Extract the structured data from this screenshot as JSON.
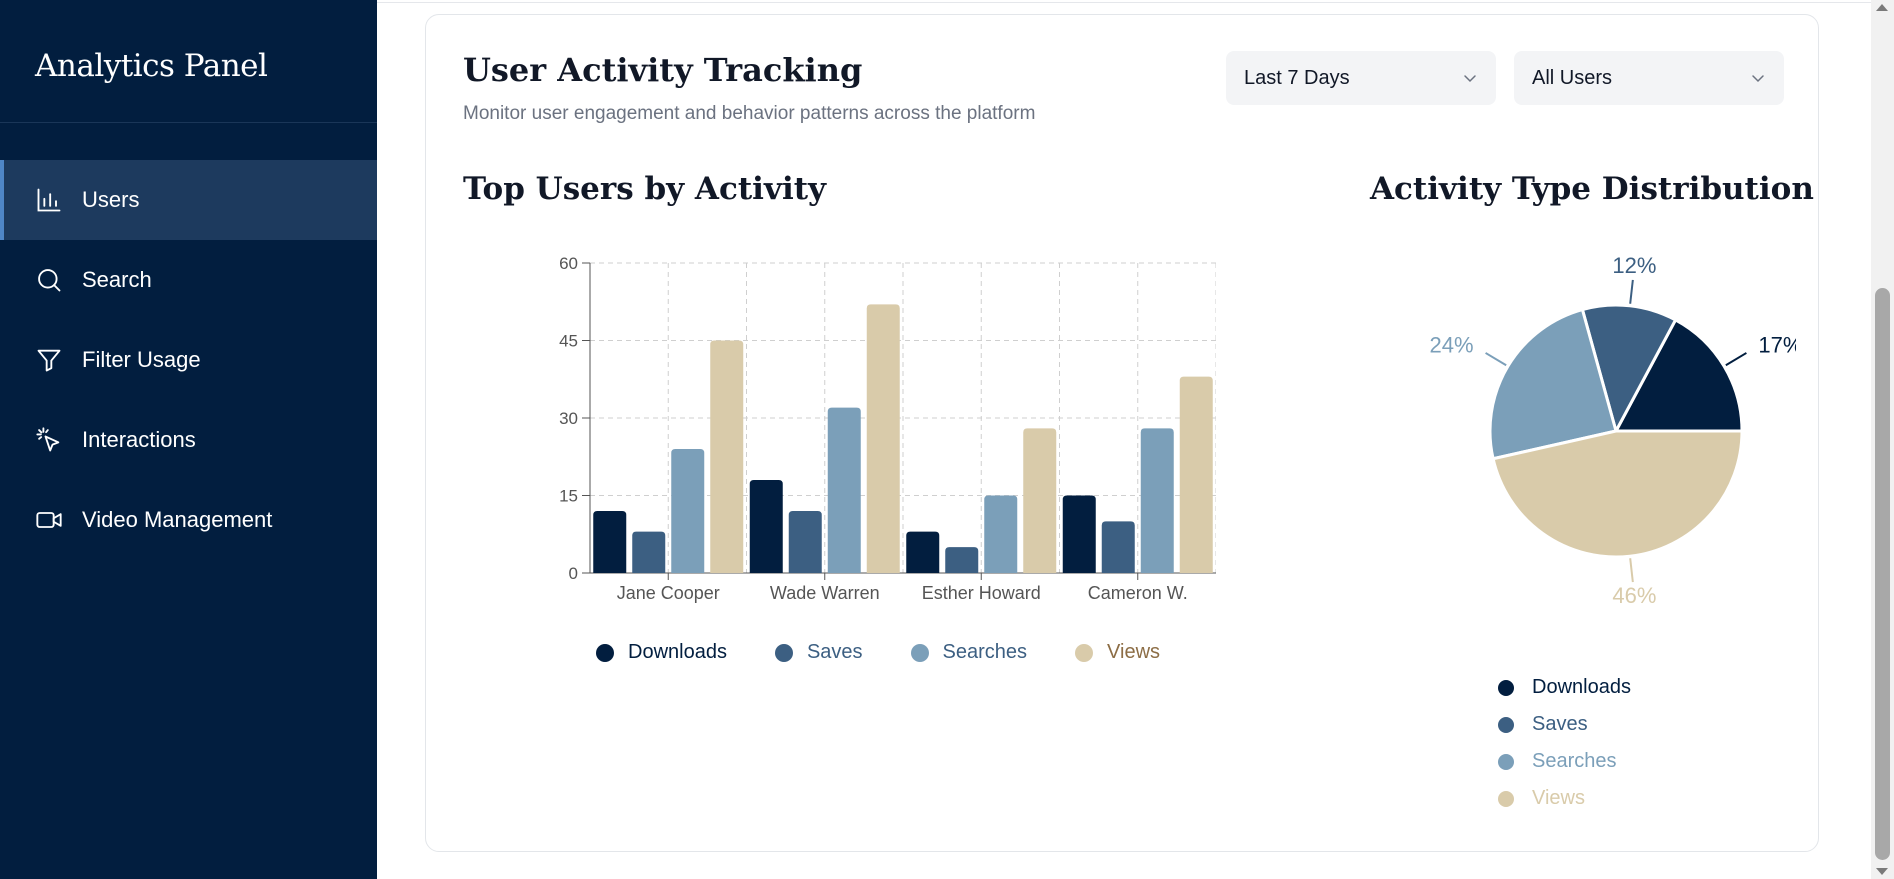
{
  "sidebar": {
    "brand": "Analytics Panel",
    "items": [
      {
        "label": "Users",
        "icon": "bar-chart-icon",
        "active": true
      },
      {
        "label": "Search",
        "icon": "search-icon"
      },
      {
        "label": "Filter Usage",
        "icon": "filter-icon"
      },
      {
        "label": "Interactions",
        "icon": "pointer-click-icon"
      },
      {
        "label": "Video Management",
        "icon": "video-icon"
      }
    ]
  },
  "header": {
    "title": "User Activity Tracking",
    "subtitle": "Monitor user engagement and behavior patterns across the platform",
    "range_select": "Last 7 Days",
    "users_select": "All Users"
  },
  "bar_section": {
    "title": "Top Users by Activity"
  },
  "pie_section": {
    "title": "Activity Type Distribution"
  },
  "colors": {
    "Downloads": "#021e3f",
    "Saves": "#3c5f82",
    "Searches": "#7b9fb9",
    "Views": "#d9cbaa"
  },
  "chart_data": [
    {
      "type": "bar",
      "title": "Top Users by Activity",
      "categories": [
        "Jane Cooper",
        "Wade Warren",
        "Esther Howard",
        "Cameron W."
      ],
      "series": [
        {
          "name": "Downloads",
          "values": [
            12,
            18,
            8,
            15
          ]
        },
        {
          "name": "Saves",
          "values": [
            8,
            12,
            5,
            10
          ]
        },
        {
          "name": "Searches",
          "values": [
            24,
            32,
            15,
            28
          ]
        },
        {
          "name": "Views",
          "values": [
            45,
            52,
            28,
            38
          ]
        }
      ],
      "ylim": [
        0,
        60
      ],
      "yticks": [
        0,
        15,
        30,
        45,
        60
      ],
      "grid": true,
      "legend": "bottom"
    },
    {
      "type": "pie",
      "title": "Activity Type Distribution",
      "labels": [
        "Downloads",
        "Saves",
        "Searches",
        "Views"
      ],
      "values": [
        17,
        12,
        24,
        46
      ],
      "value_labels": [
        "17%",
        "12%",
        "24%",
        "46%"
      ],
      "legend": "bottom"
    }
  ]
}
